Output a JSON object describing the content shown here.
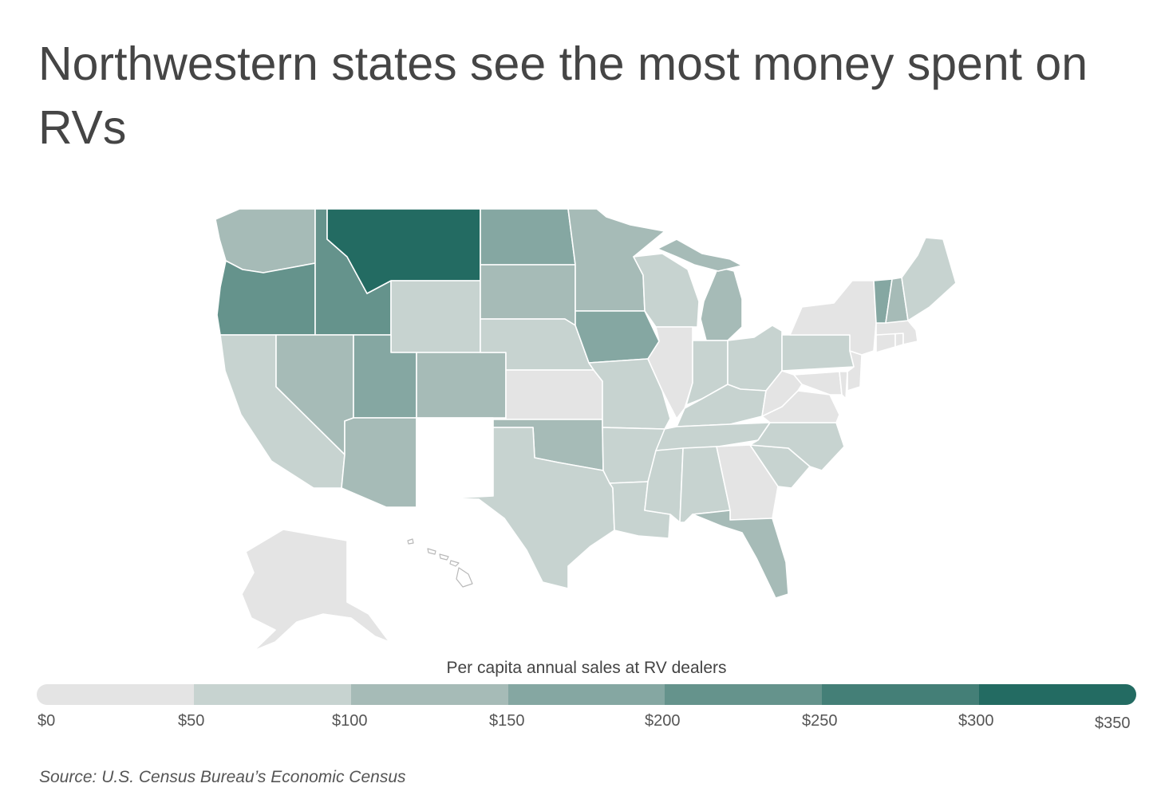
{
  "title": "Northwestern states see the most money spent on RVs",
  "legend": {
    "title": "Per capita annual sales at RV dealers",
    "ticks": [
      "$0",
      "$50",
      "$100",
      "$150",
      "$200",
      "$250",
      "$300",
      "$350"
    ],
    "colors": [
      "#e4e4e4",
      "#c7d3d0",
      "#a6bbb7",
      "#85a7a2",
      "#65938c",
      "#447f77",
      "#236b62"
    ]
  },
  "source": "Source:  U.S. Census Bureau’s Economic Census",
  "map_data": {
    "no_data_color": "#ffffff",
    "states": [
      {
        "id": "WA",
        "bucket": 2
      },
      {
        "id": "OR",
        "bucket": 4
      },
      {
        "id": "CA",
        "bucket": 1
      },
      {
        "id": "ID",
        "bucket": 4
      },
      {
        "id": "NV",
        "bucket": 2
      },
      {
        "id": "MT",
        "bucket": 6
      },
      {
        "id": "WY",
        "bucket": 1
      },
      {
        "id": "UT",
        "bucket": 3
      },
      {
        "id": "CO",
        "bucket": 2
      },
      {
        "id": "AZ",
        "bucket": 2
      },
      {
        "id": "NM",
        "bucket": null
      },
      {
        "id": "ND",
        "bucket": 3
      },
      {
        "id": "SD",
        "bucket": 2
      },
      {
        "id": "NE",
        "bucket": 1
      },
      {
        "id": "KS",
        "bucket": 0
      },
      {
        "id": "OK",
        "bucket": 2
      },
      {
        "id": "TX",
        "bucket": 1
      },
      {
        "id": "MN",
        "bucket": 2
      },
      {
        "id": "IA",
        "bucket": 3
      },
      {
        "id": "MO",
        "bucket": 1
      },
      {
        "id": "AR",
        "bucket": 1
      },
      {
        "id": "LA",
        "bucket": 1
      },
      {
        "id": "WI",
        "bucket": 1
      },
      {
        "id": "IL",
        "bucket": 0
      },
      {
        "id": "MI",
        "bucket": 2
      },
      {
        "id": "IN",
        "bucket": 1
      },
      {
        "id": "OH",
        "bucket": 1
      },
      {
        "id": "KY",
        "bucket": 1
      },
      {
        "id": "TN",
        "bucket": 1
      },
      {
        "id": "MS",
        "bucket": 1
      },
      {
        "id": "AL",
        "bucket": 1
      },
      {
        "id": "GA",
        "bucket": 0
      },
      {
        "id": "FL",
        "bucket": 2
      },
      {
        "id": "SC",
        "bucket": 1
      },
      {
        "id": "NC",
        "bucket": 1
      },
      {
        "id": "VA",
        "bucket": 0
      },
      {
        "id": "WV",
        "bucket": 0
      },
      {
        "id": "PA",
        "bucket": 1
      },
      {
        "id": "NY",
        "bucket": 0
      },
      {
        "id": "NJ",
        "bucket": 0
      },
      {
        "id": "DE",
        "bucket": 0
      },
      {
        "id": "MD",
        "bucket": 0
      },
      {
        "id": "CT",
        "bucket": 0
      },
      {
        "id": "RI",
        "bucket": 0
      },
      {
        "id": "MA",
        "bucket": 0
      },
      {
        "id": "VT",
        "bucket": 3
      },
      {
        "id": "NH",
        "bucket": 2
      },
      {
        "id": "ME",
        "bucket": 1
      },
      {
        "id": "AK",
        "bucket": 0
      },
      {
        "id": "HI",
        "bucket": null
      }
    ]
  }
}
